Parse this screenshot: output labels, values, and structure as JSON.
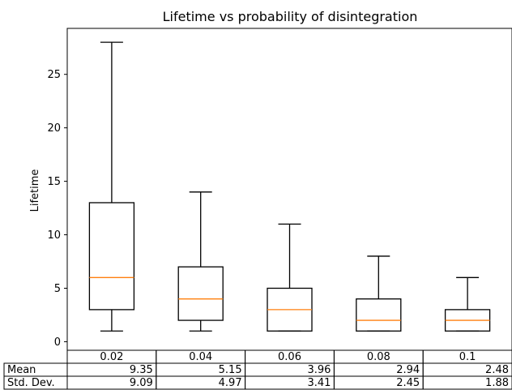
{
  "chart_data": {
    "type": "box",
    "title": "Lifetime vs probability of disintegration",
    "xlabel": "",
    "ylabel": "Lifetime",
    "ylim": [
      -0.8,
      29.3
    ],
    "yticks": [
      0,
      5,
      10,
      15,
      20,
      25
    ],
    "grid": false,
    "colors": {
      "box": "#000000",
      "median": "#ff7f0e"
    },
    "categories": [
      "0.02",
      "0.04",
      "0.06",
      "0.08",
      "0.1"
    ],
    "boxes": [
      {
        "whisker_low": 1,
        "q1": 3,
        "median": 6,
        "q3": 13,
        "whisker_high": 28
      },
      {
        "whisker_low": 1,
        "q1": 2,
        "median": 4,
        "q3": 7,
        "whisker_high": 14
      },
      {
        "whisker_low": 1,
        "q1": 1,
        "median": 3,
        "q3": 5,
        "whisker_high": 11
      },
      {
        "whisker_low": 1,
        "q1": 1,
        "median": 2,
        "q3": 4,
        "whisker_high": 8
      },
      {
        "whisker_low": 1,
        "q1": 1,
        "median": 2,
        "q3": 3,
        "whisker_high": 6
      }
    ],
    "table": {
      "rows": [
        {
          "label": "Mean",
          "values": [
            "9.35",
            "5.15",
            "3.96",
            "2.94",
            "2.48"
          ]
        },
        {
          "label": "Std. Dev.",
          "values": [
            "9.09",
            "4.97",
            "3.41",
            "2.45",
            "1.88"
          ]
        }
      ]
    }
  }
}
